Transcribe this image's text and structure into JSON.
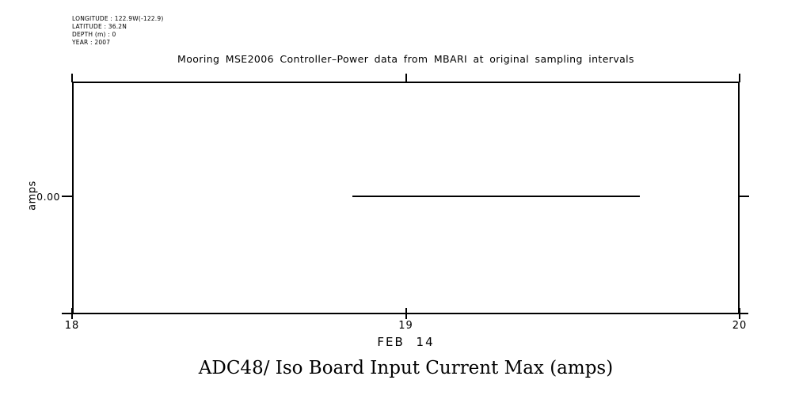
{
  "meta": {
    "longitude": "LONGITUDE : 122.9W(-122.9)",
    "latitude": "LATITUDE : 36.2N",
    "depth": "DEPTH (m) : 0",
    "year": "YEAR : 2007"
  },
  "chart_data": {
    "type": "line",
    "title": "Mooring MSE2006 Controller–Power data from MBARI at original sampling intervals",
    "footer_title": "ADC48/ Iso Board Input Current Max (amps)",
    "ylabel": "amps",
    "xlabel": "FEB 14",
    "x_ticks": [
      "18",
      "19",
      "20"
    ],
    "y_ticks": [
      "0.00"
    ],
    "xlim": [
      18,
      20
    ],
    "grid": false,
    "legend": "none",
    "line_color": "#000000",
    "background_color": "#ffffff",
    "series": [
      {
        "name": "ADC48/ Iso Board Input Current Max",
        "x": [
          18.84,
          19.7
        ],
        "y": [
          0.0,
          0.0
        ]
      }
    ]
  }
}
